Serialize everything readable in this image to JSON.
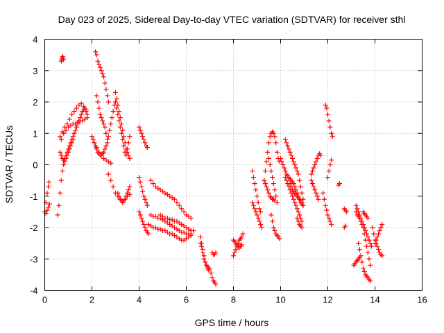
{
  "chart_data": {
    "type": "scatter",
    "title": "Day 023 of 2025, Sidereal Day-to-day VTEC variation (SDTVAR) for receiver sthl",
    "xlabel": "GPS time / hours",
    "ylabel": "SDTVAR / TECUs",
    "xlim": [
      0,
      16
    ],
    "ylim": [
      -4,
      4
    ],
    "xticks": [
      "0",
      "2",
      "4",
      "6",
      "8",
      "10",
      "12",
      "14",
      "16"
    ],
    "yticks": [
      "-4",
      "-3",
      "-2",
      "-1",
      "0",
      "1",
      "2",
      "3",
      "4"
    ],
    "grid": true,
    "legend": "none",
    "marker": "plus",
    "color": "#ff0000",
    "series": [
      {
        "x": [
          0.0,
          0.05,
          0.1,
          0.15,
          0.18,
          0.05,
          0.1,
          0.15,
          0.2,
          0.55,
          0.6,
          0.65,
          0.7,
          0.75,
          0.8,
          0.85,
          0.9,
          0.95,
          1.0,
          1.05,
          1.1,
          1.15,
          1.2,
          1.25,
          1.3,
          1.35,
          1.4,
          1.45,
          1.5,
          1.55,
          1.6,
          1.65,
          1.7,
          1.75,
          1.8,
          0.7,
          0.8,
          0.9,
          1.0,
          1.1,
          1.2,
          1.3,
          1.4,
          1.5,
          1.6,
          1.7,
          1.8,
          0.65,
          0.75,
          0.85,
          0.95,
          1.05,
          1.15,
          1.25,
          1.35,
          1.45,
          1.55,
          1.65,
          1.75,
          0.65,
          0.7,
          0.75,
          0.8,
          0.85,
          0.9,
          0.95,
          1.0,
          1.05,
          1.1,
          1.15,
          1.2,
          0.7,
          0.72,
          0.74,
          0.76,
          0.78,
          0.8,
          2.0,
          2.05,
          2.1,
          2.15,
          2.2,
          2.25,
          2.3,
          2.35,
          2.4,
          2.45,
          2.5,
          2.55,
          2.6,
          2.65,
          2.7,
          2.75,
          2.8,
          2.85,
          2.9,
          2.95,
          3.0,
          3.05,
          3.1,
          3.15,
          3.2,
          3.25,
          3.3,
          3.35,
          3.4,
          3.45,
          3.5,
          3.55,
          3.6,
          2.2,
          2.25,
          2.3,
          2.35,
          2.4,
          2.45,
          2.5,
          2.55,
          2.6,
          2.65,
          2.1,
          2.2,
          2.3,
          2.4,
          2.5,
          2.6,
          2.7,
          2.8,
          2.15,
          2.2,
          2.25,
          2.3,
          2.35,
          2.4,
          2.45,
          2.5,
          2.55,
          2.6,
          2.65,
          2.7,
          3.0,
          3.05,
          3.1,
          3.15,
          3.2,
          3.25,
          3.3,
          3.35,
          3.4,
          3.45,
          3.5,
          3.55,
          3.6,
          3.1,
          3.15,
          3.2,
          3.25,
          3.3,
          3.35,
          3.4,
          3.45,
          3.5,
          3.55,
          3.6,
          2.7,
          2.8,
          2.9,
          3.0,
          3.1,
          3.2,
          3.3,
          3.4,
          3.5,
          3.6,
          4.0,
          4.05,
          4.1,
          4.15,
          4.2,
          4.25,
          4.3,
          4.35,
          4.0,
          4.05,
          4.1,
          4.15,
          4.2,
          4.25,
          4.3,
          4.35,
          4.0,
          4.05,
          4.1,
          4.15,
          4.2,
          4.25,
          4.3,
          4.35,
          4.4,
          4.5,
          4.6,
          4.7,
          4.8,
          4.9,
          5.0,
          5.1,
          5.2,
          5.3,
          5.4,
          5.5,
          5.6,
          5.7,
          5.8,
          5.9,
          6.0,
          6.1,
          6.2,
          4.5,
          4.6,
          4.7,
          4.8,
          4.9,
          5.0,
          5.1,
          5.2,
          5.3,
          5.4,
          5.5,
          5.6,
          5.7,
          5.8,
          5.9,
          6.0,
          6.1,
          6.2,
          4.4,
          4.5,
          4.6,
          4.7,
          4.8,
          4.9,
          5.0,
          5.1,
          5.2,
          5.3,
          5.4,
          5.5,
          5.6,
          5.7,
          5.8,
          5.9,
          6.0,
          6.1,
          6.2,
          6.3,
          4.9,
          5.0,
          5.1,
          5.2,
          5.3,
          5.4,
          5.5,
          5.6,
          5.7,
          5.8,
          5.9,
          6.0,
          6.1,
          6.2,
          6.6,
          6.65,
          6.7,
          6.75,
          6.8,
          6.85,
          6.9,
          6.95,
          6.6,
          6.65,
          6.7,
          6.75,
          6.8,
          6.85,
          6.9,
          6.95,
          7.0,
          7.05,
          7.1,
          7.15,
          7.2,
          7.25,
          7.1,
          7.15,
          7.2,
          7.25,
          8.0,
          8.05,
          8.1,
          8.15,
          8.2,
          8.25,
          8.3,
          8.35,
          8.4,
          8.0,
          8.05,
          8.1,
          8.15,
          8.2,
          8.25,
          8.3,
          8.35,
          8.8,
          8.85,
          8.9,
          8.95,
          9.0,
          9.05,
          9.1,
          9.15,
          8.8,
          8.85,
          8.9,
          8.95,
          9.0,
          9.05,
          9.1,
          9.15,
          9.2,
          9.3,
          9.35,
          9.4,
          9.45,
          9.5,
          9.55,
          9.6,
          9.65,
          9.7,
          9.75,
          9.8,
          9.85,
          9.9,
          9.95,
          9.3,
          9.35,
          9.4,
          9.45,
          9.5,
          9.55,
          9.6,
          9.65,
          9.7,
          9.75,
          9.6,
          9.65,
          9.7,
          9.75,
          9.8,
          9.85,
          9.9,
          9.95,
          9.5,
          9.55,
          9.6,
          9.65,
          9.7,
          9.75,
          9.8,
          9.85,
          10.2,
          10.25,
          10.3,
          10.35,
          10.4,
          10.45,
          10.5,
          10.55,
          10.6,
          10.65,
          10.7,
          10.75,
          10.8,
          10.85,
          10.9,
          10.95,
          10.0,
          10.05,
          10.1,
          10.15,
          10.2,
          10.25,
          10.3,
          10.35,
          10.4,
          10.45,
          10.5,
          10.55,
          10.6,
          10.65,
          10.7,
          10.75,
          10.8,
          10.85,
          10.9,
          10.95,
          10.2,
          10.25,
          10.3,
          10.35,
          10.4,
          10.45,
          10.5,
          10.55,
          10.6,
          10.65,
          10.7,
          10.75,
          10.8,
          10.85,
          10.9,
          10.4,
          10.45,
          10.5,
          10.55,
          10.6,
          10.65,
          10.7,
          10.75,
          10.8,
          10.85,
          10.9,
          10.95,
          10.7,
          10.75,
          10.8,
          10.85,
          10.9,
          11.3,
          11.35,
          11.4,
          11.45,
          11.5,
          11.55,
          11.6,
          11.65,
          11.7,
          11.3,
          11.35,
          11.4,
          11.45,
          11.5,
          11.55,
          11.6,
          11.8,
          11.85,
          11.9,
          11.95,
          12.0,
          12.05,
          12.1,
          12.15,
          11.9,
          11.95,
          12.0,
          12.05,
          12.1,
          12.15,
          12.2,
          12.0,
          12.05,
          12.1,
          12.15,
          12.45,
          12.5,
          12.7,
          12.75,
          12.8,
          12.7,
          12.75,
          13.2,
          13.25,
          13.3,
          13.35,
          13.4,
          13.45,
          13.5,
          13.55,
          13.6,
          13.65,
          13.7,
          13.75,
          13.8,
          13.85,
          13.2,
          13.25,
          13.3,
          13.35,
          13.4,
          13.45,
          13.5,
          13.55,
          13.6,
          13.65,
          13.7,
          13.75,
          13.8,
          13.3,
          13.35,
          13.4,
          13.45,
          13.5,
          13.55,
          13.6,
          13.65,
          13.7,
          13.75,
          13.8,
          13.1,
          13.15,
          13.2,
          13.25,
          13.3,
          13.35,
          13.9,
          13.95,
          14.0,
          14.05,
          14.1,
          14.15,
          14.2,
          14.25,
          14.3,
          14.0,
          14.05,
          14.1,
          14.15,
          14.2,
          14.25,
          14.3,
          13.5,
          13.55,
          13.6,
          13.65,
          13.7
        ],
        "y": [
          -1.5,
          -1.2,
          -0.9,
          -0.7,
          -0.55,
          -1.55,
          -1.45,
          -1.35,
          -1.25,
          -1.6,
          -1.3,
          -0.9,
          -0.5,
          -0.2,
          0.0,
          0.2,
          0.3,
          0.4,
          0.5,
          0.6,
          0.7,
          0.8,
          0.9,
          1.0,
          1.1,
          1.2,
          1.3,
          1.4,
          1.5,
          1.6,
          1.7,
          1.75,
          1.8,
          1.7,
          1.6,
          0.8,
          1.0,
          1.1,
          1.2,
          1.25,
          1.3,
          1.3,
          1.35,
          1.4,
          1.4,
          1.45,
          1.5,
          0.9,
          1.05,
          1.2,
          1.3,
          1.45,
          1.6,
          1.7,
          1.8,
          1.9,
          1.95,
          1.85,
          1.75,
          0.4,
          0.3,
          0.2,
          0.15,
          0.1,
          0.2,
          0.3,
          0.4,
          0.5,
          0.6,
          0.7,
          0.8,
          3.3,
          3.35,
          3.4,
          3.45,
          3.4,
          3.35,
          0.9,
          0.8,
          0.7,
          0.6,
          0.5,
          0.4,
          0.35,
          0.3,
          0.3,
          0.35,
          0.4,
          0.5,
          0.6,
          0.7,
          0.9,
          1.1,
          1.3,
          1.5,
          1.7,
          1.9,
          2.0,
          1.8,
          1.6,
          1.4,
          1.2,
          1.0,
          0.8,
          0.6,
          0.4,
          0.3,
          0.5,
          0.7,
          0.9,
          2.2,
          2.0,
          1.8,
          1.6,
          1.5,
          1.4,
          1.3,
          1.2,
          1.0,
          0.8,
          0.7,
          0.55,
          0.4,
          0.3,
          0.2,
          0.15,
          0.1,
          0.05,
          3.6,
          3.5,
          3.3,
          3.2,
          3.1,
          3.0,
          2.9,
          2.8,
          2.6,
          2.4,
          2.2,
          2.0,
          2.3,
          2.1,
          1.9,
          1.7,
          1.5,
          1.3,
          1.1,
          0.9,
          0.7,
          0.5,
          0.4,
          0.3,
          0.2,
          -0.9,
          -1.0,
          -1.1,
          -1.15,
          -1.2,
          -1.15,
          -1.1,
          -1.0,
          -0.9,
          -0.8,
          -0.7,
          -0.3,
          -0.5,
          -0.7,
          -0.9,
          -1.0,
          -1.1,
          -1.2,
          -1.1,
          -1.0,
          -0.95,
          1.2,
          1.1,
          1.0,
          0.9,
          0.8,
          0.7,
          0.6,
          0.55,
          -0.4,
          -0.55,
          -0.7,
          -0.85,
          -1.0,
          -1.1,
          -1.2,
          -1.3,
          -1.5,
          -1.6,
          -1.7,
          -1.8,
          -1.9,
          -2.0,
          -2.1,
          -2.15,
          -2.2,
          -0.5,
          -0.6,
          -0.7,
          -0.75,
          -0.8,
          -0.85,
          -0.9,
          -0.95,
          -1.0,
          -1.05,
          -1.1,
          -1.2,
          -1.3,
          -1.4,
          -1.5,
          -1.6,
          -1.65,
          -1.7,
          -1.6,
          -1.65,
          -1.65,
          -1.7,
          -1.7,
          -1.75,
          -1.8,
          -1.85,
          -1.9,
          -1.95,
          -2.0,
          -2.05,
          -2.1,
          -2.15,
          -2.15,
          -2.2,
          -2.2,
          -2.25,
          -1.9,
          -1.95,
          -2.0,
          -2.0,
          -2.05,
          -2.05,
          -2.1,
          -2.1,
          -2.15,
          -2.2,
          -2.2,
          -2.25,
          -2.3,
          -2.35,
          -2.4,
          -2.4,
          -2.35,
          -2.3,
          -2.2,
          -2.1,
          -1.6,
          -1.65,
          -1.7,
          -1.7,
          -1.75,
          -1.75,
          -1.8,
          -1.8,
          -1.85,
          -1.9,
          -1.95,
          -2.0,
          -2.05,
          -2.1,
          -2.3,
          -2.5,
          -2.7,
          -2.9,
          -3.1,
          -3.2,
          -3.3,
          -3.35,
          -2.5,
          -2.6,
          -2.8,
          -3.0,
          -3.1,
          -3.2,
          -3.25,
          -3.3,
          -3.3,
          -3.45,
          -3.6,
          -3.7,
          -3.75,
          -3.8,
          -2.8,
          -2.85,
          -2.85,
          -2.8,
          -2.9,
          -2.8,
          -2.7,
          -2.6,
          -2.5,
          -2.4,
          -2.35,
          -2.3,
          -2.2,
          -2.4,
          -2.45,
          -2.5,
          -2.55,
          -2.6,
          -2.65,
          -2.6,
          -2.55,
          -0.2,
          -0.4,
          -0.6,
          -0.8,
          -1.0,
          -1.2,
          -1.4,
          -1.5,
          -1.2,
          -1.3,
          -1.4,
          -1.5,
          -1.6,
          -1.7,
          -1.8,
          -1.9,
          -2.0,
          -0.5,
          -0.2,
          0.1,
          0.4,
          0.7,
          0.9,
          1.0,
          1.05,
          1.0,
          0.9,
          0.7,
          0.4,
          0.2,
          0.1,
          -0.5,
          -0.6,
          -0.7,
          -0.8,
          -0.9,
          -1.0,
          -1.05,
          -1.1,
          -1.1,
          -1.15,
          -1.6,
          -1.8,
          -2.0,
          -2.1,
          -2.2,
          -2.25,
          -2.3,
          -2.35,
          0.2,
          0.0,
          -0.2,
          -0.4,
          -0.6,
          -0.8,
          -1.0,
          -1.2,
          0.8,
          0.7,
          0.6,
          0.5,
          0.4,
          0.3,
          0.2,
          0.1,
          0.0,
          -0.1,
          -0.2,
          -0.3,
          -0.5,
          -0.7,
          -0.9,
          -1.1,
          0.2,
          0.1,
          0.0,
          -0.1,
          -0.2,
          -0.3,
          -0.35,
          -0.4,
          -0.45,
          -0.5,
          -0.55,
          -0.6,
          -0.7,
          -0.8,
          -0.9,
          -1.0,
          -1.1,
          -1.2,
          -1.25,
          -1.3,
          -0.4,
          -0.5,
          -0.6,
          -0.7,
          -0.8,
          -0.9,
          -1.0,
          -1.1,
          -1.2,
          -1.3,
          -1.4,
          -1.5,
          -1.6,
          -1.7,
          -1.8,
          -0.6,
          -0.7,
          -0.8,
          -0.85,
          -0.9,
          -0.95,
          -1.0,
          -1.05,
          -1.1,
          -1.15,
          -1.2,
          -1.3,
          -1.7,
          -1.8,
          -1.9,
          -1.95,
          -2.0,
          -0.3,
          -0.2,
          -0.1,
          0.0,
          0.1,
          0.2,
          0.3,
          0.35,
          0.3,
          -0.5,
          -0.6,
          -0.7,
          -0.8,
          -0.9,
          -1.0,
          -1.1,
          -0.9,
          -1.1,
          -1.3,
          -1.45,
          -1.6,
          -1.7,
          -1.8,
          -1.9,
          1.9,
          1.8,
          1.6,
          1.4,
          1.2,
          1.0,
          0.9,
          -0.4,
          -0.2,
          0.0,
          0.15,
          -0.65,
          -0.6,
          -1.4,
          -1.45,
          -1.5,
          -2.0,
          -1.95,
          -1.3,
          -1.4,
          -1.5,
          -1.6,
          -1.7,
          -1.8,
          -1.9,
          -2.0,
          -2.1,
          -2.2,
          -2.3,
          -2.4,
          -2.5,
          -2.6,
          -1.5,
          -1.6,
          -1.65,
          -1.7,
          -1.8,
          -1.9,
          -2.0,
          -2.2,
          -2.4,
          -2.6,
          -2.8,
          -3.0,
          -3.2,
          -2.5,
          -2.7,
          -2.9,
          -3.1,
          -3.3,
          -3.4,
          -3.5,
          -3.55,
          -3.6,
          -3.65,
          -3.7,
          -3.2,
          -3.15,
          -3.1,
          -3.05,
          -3.0,
          -2.95,
          -2.0,
          -2.2,
          -2.4,
          -2.5,
          -2.6,
          -2.7,
          -2.8,
          -2.85,
          -2.9,
          -2.5,
          -2.4,
          -2.3,
          -2.2,
          -2.1,
          -2.0,
          -1.9,
          -1.5,
          -1.55,
          -1.6,
          -1.65,
          -1.7
        ]
      }
    ]
  }
}
